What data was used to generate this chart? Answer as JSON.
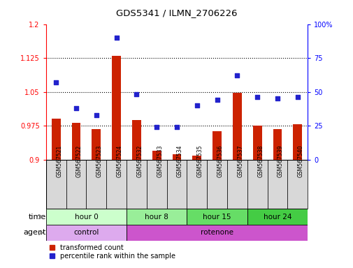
{
  "title": "GDS5341 / ILMN_2706226",
  "samples": [
    "GSM567521",
    "GSM567522",
    "GSM567523",
    "GSM567524",
    "GSM567532",
    "GSM567533",
    "GSM567534",
    "GSM567535",
    "GSM567536",
    "GSM567537",
    "GSM567538",
    "GSM567539",
    "GSM567540"
  ],
  "red_values": [
    0.99,
    0.982,
    0.968,
    1.13,
    0.988,
    0.92,
    0.912,
    0.908,
    0.963,
    1.047,
    0.975,
    0.968,
    0.978
  ],
  "blue_values": [
    57,
    38,
    33,
    90,
    48,
    24,
    24,
    40,
    44,
    62,
    46,
    45,
    46
  ],
  "ylim_left": [
    0.9,
    1.2
  ],
  "ylim_right": [
    0,
    100
  ],
  "yticks_left": [
    0.9,
    0.975,
    1.05,
    1.125,
    1.2
  ],
  "yticks_left_labels": [
    "0.9",
    "0.975",
    "1.05",
    "1.125",
    "1.2"
  ],
  "yticks_right": [
    0,
    25,
    50,
    75,
    100
  ],
  "yticks_right_labels": [
    "0",
    "25",
    "50",
    "75",
    "100%"
  ],
  "hlines": [
    0.975,
    1.05,
    1.125
  ],
  "group_separators": [
    3.5,
    6.5,
    9.5
  ],
  "time_groups": [
    {
      "label": "hour 0",
      "start": 0,
      "end": 4,
      "color": "#ccffcc"
    },
    {
      "label": "hour 8",
      "start": 4,
      "end": 7,
      "color": "#99ee99"
    },
    {
      "label": "hour 15",
      "start": 7,
      "end": 10,
      "color": "#66dd66"
    },
    {
      "label": "hour 24",
      "start": 10,
      "end": 13,
      "color": "#44cc44"
    }
  ],
  "agent_groups": [
    {
      "label": "control",
      "start": 0,
      "end": 4,
      "color": "#ddaaee"
    },
    {
      "label": "rotenone",
      "start": 4,
      "end": 13,
      "color": "#cc55cc"
    }
  ],
  "bar_color": "#cc2200",
  "dot_color": "#2222cc",
  "legend_red": "transformed count",
  "legend_blue": "percentile rank within the sample",
  "sample_bg_color": "#d8d8d8",
  "main_bg_color": "#ffffff",
  "time_label": "time",
  "agent_label": "agent",
  "bar_width": 0.45
}
